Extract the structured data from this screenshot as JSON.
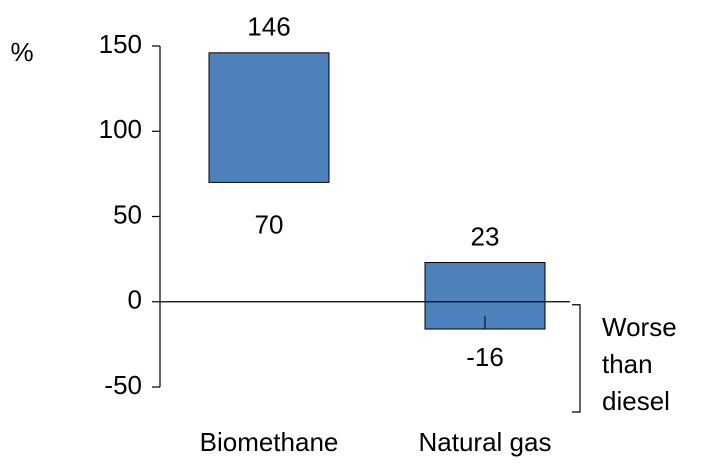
{
  "chart_data": {
    "type": "floating-bar",
    "y_label": "%",
    "categories": [
      "Biomethane",
      "Natural gas"
    ],
    "low": [
      70,
      -16
    ],
    "high": [
      146,
      23
    ],
    "color": "#4f81bd",
    "ylim": [
      -50,
      150
    ],
    "yticks": [
      -50,
      0,
      50,
      100,
      150
    ],
    "annotation": [
      "Worse",
      "than",
      "diesel"
    ]
  }
}
